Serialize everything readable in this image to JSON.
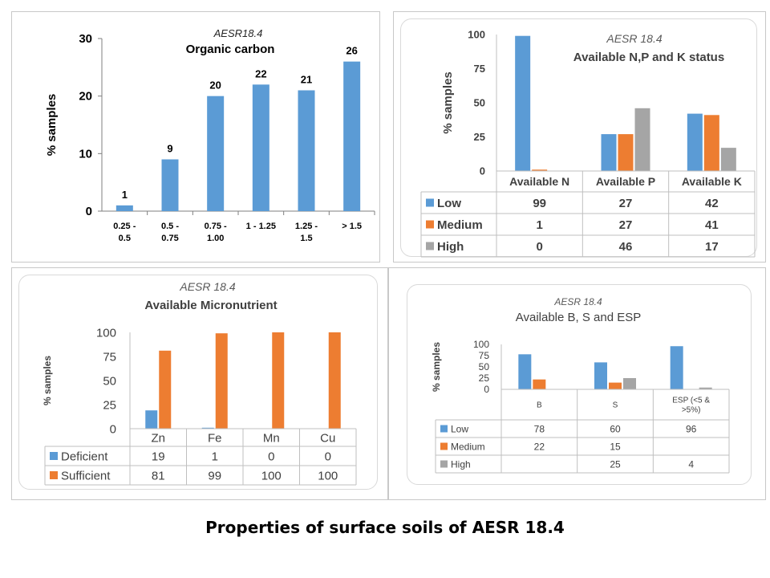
{
  "caption": "Properties of surface soils of AESR 18.4",
  "colors": {
    "blue": "#5b9bd5",
    "orange": "#ed7d31",
    "gray": "#a5a5a5"
  },
  "chart_data": [
    {
      "type": "bar",
      "region": "AESR18.4",
      "title": "Organic carbon",
      "ylabel": "% samples",
      "ylim": [
        0,
        30
      ],
      "yticks": [
        "0",
        "10",
        "20",
        "30"
      ],
      "categories": [
        [
          "0.25 -",
          "0.5"
        ],
        [
          "0.5 -",
          "0.75"
        ],
        [
          "0.75 -",
          "1.00"
        ],
        [
          "1 - 1.25"
        ],
        [
          "1.25 -",
          "1.5"
        ],
        [
          "> 1.5"
        ]
      ],
      "values": [
        1,
        9,
        20,
        22,
        21,
        26
      ],
      "data_labels": [
        "1",
        "9",
        "20",
        "22",
        "21",
        "26"
      ]
    },
    {
      "type": "bar",
      "region": "AESR 18.4",
      "title": "Available N,P and K status",
      "ylabel": "% samples",
      "ylim": [
        0,
        100
      ],
      "yticks": [
        "0",
        "25",
        "50",
        "75",
        "100"
      ],
      "categories": [
        "Available N",
        "Available P",
        "Available K"
      ],
      "series": [
        {
          "name": "Low",
          "values": [
            99,
            27,
            42
          ],
          "cells": [
            "99",
            "27",
            "42"
          ]
        },
        {
          "name": "Medium",
          "values": [
            1,
            27,
            41
          ],
          "cells": [
            "1",
            "27",
            "41"
          ]
        },
        {
          "name": "High",
          "values": [
            0,
            46,
            17
          ],
          "cells": [
            "0",
            "46",
            "17"
          ]
        }
      ]
    },
    {
      "type": "bar",
      "region": "AESR 18.4",
      "title": "Available Micronutrient",
      "ylabel": "% samples",
      "ylim": [
        0,
        100
      ],
      "yticks": [
        "0",
        "25",
        "50",
        "75",
        "100"
      ],
      "categories": [
        "Zn",
        "Fe",
        "Mn",
        "Cu"
      ],
      "series": [
        {
          "name": "Deficient",
          "values": [
            19,
            1,
            0,
            0
          ],
          "cells": [
            "19",
            "1",
            "0",
            "0"
          ]
        },
        {
          "name": "Sufficient",
          "values": [
            81,
            99,
            100,
            100
          ],
          "cells": [
            "81",
            "99",
            "100",
            "100"
          ]
        }
      ]
    },
    {
      "type": "bar",
      "region": "AESR 18.4",
      "title": "Available B, S and ESP",
      "ylabel": "% samples",
      "ylim": [
        0,
        100
      ],
      "yticks": [
        "0",
        "25",
        "50",
        "75",
        "100"
      ],
      "categories": [
        [
          "B"
        ],
        [
          "S"
        ],
        [
          "ESP (<5 &",
          ">5%)"
        ]
      ],
      "series": [
        {
          "name": "Low",
          "values": [
            78,
            60,
            96
          ],
          "cells": [
            "78",
            "60",
            "96"
          ]
        },
        {
          "name": "Medium",
          "values": [
            22,
            15,
            null
          ],
          "cells": [
            "22",
            "15",
            ""
          ]
        },
        {
          "name": "High",
          "values": [
            null,
            25,
            4
          ],
          "cells": [
            "",
            "25",
            "4"
          ]
        }
      ]
    }
  ]
}
